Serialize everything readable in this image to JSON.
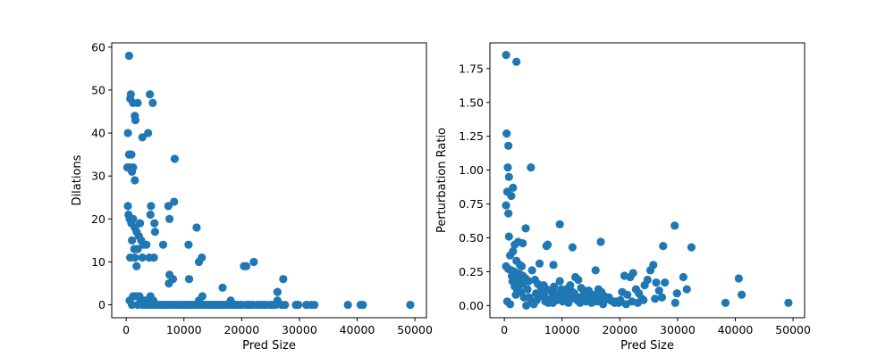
{
  "chart_data": [
    {
      "type": "scatter",
      "xlabel": "Pred Size",
      "ylabel": "Dilations",
      "xlim": [
        -2500,
        52000
      ],
      "ylim": [
        -3,
        61
      ],
      "xticks": [
        0,
        10000,
        20000,
        30000,
        40000,
        50000
      ],
      "xtick_labels": [
        "0",
        "10000",
        "20000",
        "30000",
        "40000",
        "50000"
      ],
      "yticks": [
        0,
        10,
        20,
        30,
        40,
        50,
        60
      ],
      "ytick_labels": [
        "0",
        "10",
        "20",
        "30",
        "40",
        "50",
        "60"
      ],
      "grid": false,
      "marker_color": "#1f77b4",
      "points": [
        [
          500,
          58
        ],
        [
          800,
          49
        ],
        [
          700,
          48
        ],
        [
          1200,
          47
        ],
        [
          2000,
          47
        ],
        [
          1500,
          44
        ],
        [
          1600,
          43
        ],
        [
          300,
          40
        ],
        [
          3800,
          40
        ],
        [
          2800,
          39
        ],
        [
          500,
          35
        ],
        [
          900,
          35
        ],
        [
          200,
          32
        ],
        [
          600,
          32
        ],
        [
          1200,
          32
        ],
        [
          1000,
          31
        ],
        [
          1500,
          29
        ],
        [
          4100,
          49
        ],
        [
          4600,
          47
        ],
        [
          8400,
          34
        ],
        [
          300,
          23
        ],
        [
          400,
          21
        ],
        [
          600,
          20
        ],
        [
          900,
          19
        ],
        [
          1200,
          20
        ],
        [
          1500,
          18
        ],
        [
          1800,
          17
        ],
        [
          2200,
          16
        ],
        [
          2600,
          15
        ],
        [
          3000,
          14
        ],
        [
          3500,
          14
        ],
        [
          1400,
          13
        ],
        [
          2000,
          13
        ],
        [
          2400,
          19
        ],
        [
          1000,
          15
        ],
        [
          700,
          11
        ],
        [
          1500,
          11
        ],
        [
          2800,
          11
        ],
        [
          1800,
          9
        ],
        [
          4200,
          21
        ],
        [
          4300,
          23
        ],
        [
          4900,
          19
        ],
        [
          5000,
          17
        ],
        [
          4000,
          11
        ],
        [
          4800,
          11
        ],
        [
          6400,
          14
        ],
        [
          7300,
          23
        ],
        [
          8300,
          24
        ],
        [
          7500,
          20
        ],
        [
          7500,
          7
        ],
        [
          8100,
          6
        ],
        [
          7400,
          5
        ],
        [
          10800,
          14
        ],
        [
          10900,
          6
        ],
        [
          12200,
          18
        ],
        [
          12600,
          10
        ],
        [
          13100,
          11
        ],
        [
          16700,
          4
        ],
        [
          20400,
          9
        ],
        [
          20800,
          9
        ],
        [
          22100,
          10
        ],
        [
          26200,
          3
        ],
        [
          27200,
          6
        ],
        [
          600,
          1
        ],
        [
          1000,
          0
        ],
        [
          1400,
          2
        ],
        [
          2000,
          0
        ],
        [
          2600,
          1
        ],
        [
          3000,
          0
        ],
        [
          3500,
          0
        ],
        [
          4200,
          2
        ],
        [
          5000,
          0
        ],
        [
          5600,
          0
        ],
        [
          6200,
          0
        ],
        [
          6800,
          0
        ],
        [
          7500,
          0
        ],
        [
          8200,
          0
        ],
        [
          9000,
          0
        ],
        [
          9600,
          0
        ],
        [
          10200,
          0
        ],
        [
          10800,
          0
        ],
        [
          11400,
          0
        ],
        [
          12000,
          0
        ],
        [
          12600,
          1
        ],
        [
          13200,
          2
        ],
        [
          13800,
          0
        ],
        [
          14400,
          0
        ],
        [
          15000,
          0
        ],
        [
          15600,
          0
        ],
        [
          16200,
          0
        ],
        [
          16800,
          0
        ],
        [
          17400,
          0
        ],
        [
          18100,
          1
        ],
        [
          18800,
          0
        ],
        [
          19400,
          0
        ],
        [
          20100,
          0
        ],
        [
          20800,
          0
        ],
        [
          21400,
          0
        ],
        [
          22000,
          0
        ],
        [
          22700,
          0
        ],
        [
          23400,
          0
        ],
        [
          24100,
          0
        ],
        [
          24800,
          0
        ],
        [
          25500,
          0
        ],
        [
          26200,
          1
        ],
        [
          26900,
          0
        ],
        [
          27500,
          0
        ],
        [
          29400,
          0
        ],
        [
          29800,
          0
        ],
        [
          31200,
          0
        ],
        [
          32000,
          0
        ],
        [
          32600,
          0
        ],
        [
          38400,
          0
        ],
        [
          40600,
          0
        ],
        [
          41000,
          0
        ],
        [
          49200,
          0
        ],
        [
          1200,
          2
        ],
        [
          1900,
          2
        ],
        [
          2300,
          2
        ],
        [
          2900,
          0
        ],
        [
          3300,
          1
        ],
        [
          3900,
          0
        ],
        [
          4400,
          0
        ],
        [
          4700,
          1
        ],
        [
          5300,
          0
        ],
        [
          6000,
          0
        ],
        [
          6600,
          0
        ],
        [
          7100,
          0
        ],
        [
          7900,
          0
        ],
        [
          8600,
          0
        ],
        [
          9300,
          0
        ],
        [
          9900,
          0
        ],
        [
          10500,
          0
        ],
        [
          11100,
          0
        ],
        [
          11700,
          0
        ],
        [
          12300,
          0
        ],
        [
          12900,
          0
        ],
        [
          13500,
          0
        ],
        [
          14100,
          0
        ],
        [
          14700,
          0
        ],
        [
          15300,
          0
        ],
        [
          15900,
          0
        ],
        [
          16500,
          0
        ],
        [
          17100,
          0
        ],
        [
          17700,
          0
        ],
        [
          18400,
          0
        ],
        [
          19100,
          0
        ],
        [
          19700,
          0
        ],
        [
          21100,
          0
        ],
        [
          21800,
          0
        ],
        [
          23100,
          0
        ],
        [
          23800,
          0
        ],
        [
          25200,
          0
        ],
        [
          25900,
          0
        ]
      ]
    },
    {
      "type": "scatter",
      "xlabel": "Pred Size",
      "ylabel": "Perturbation Ratio",
      "xlim": [
        -2500,
        52000
      ],
      "ylim": [
        -0.09,
        1.94
      ],
      "xticks": [
        0,
        10000,
        20000,
        30000,
        40000,
        50000
      ],
      "xtick_labels": [
        "0",
        "10000",
        "20000",
        "30000",
        "40000",
        "50000"
      ],
      "yticks": [
        0,
        0.25,
        0.5,
        0.75,
        1.0,
        1.25,
        1.5,
        1.75
      ],
      "ytick_labels": [
        "0.00",
        "0.25",
        "0.50",
        "0.75",
        "1.00",
        "1.25",
        "1.50",
        "1.75"
      ],
      "grid": false,
      "marker_color": "#1f77b4",
      "points": [
        [
          300,
          1.85
        ],
        [
          2100,
          1.8
        ],
        [
          400,
          1.27
        ],
        [
          700,
          1.18
        ],
        [
          600,
          1.02
        ],
        [
          4600,
          1.02
        ],
        [
          800,
          0.95
        ],
        [
          1500,
          0.87
        ],
        [
          500,
          0.84
        ],
        [
          1200,
          0.81
        ],
        [
          300,
          0.74
        ],
        [
          700,
          0.68
        ],
        [
          3700,
          0.57
        ],
        [
          9600,
          0.6
        ],
        [
          29500,
          0.59
        ],
        [
          800,
          0.51
        ],
        [
          1800,
          0.45
        ],
        [
          2400,
          0.47
        ],
        [
          3200,
          0.46
        ],
        [
          7300,
          0.44
        ],
        [
          7500,
          0.45
        ],
        [
          11800,
          0.43
        ],
        [
          16700,
          0.47
        ],
        [
          27500,
          0.44
        ],
        [
          32400,
          0.43
        ],
        [
          1000,
          0.37
        ],
        [
          1500,
          0.4
        ],
        [
          2100,
          0.33
        ],
        [
          2700,
          0.3
        ],
        [
          3000,
          0.29
        ],
        [
          6100,
          0.31
        ],
        [
          8500,
          0.3
        ],
        [
          300,
          0.29
        ],
        [
          700,
          0.27
        ],
        [
          1200,
          0.26
        ],
        [
          1700,
          0.25
        ],
        [
          2200,
          0.24
        ],
        [
          2700,
          0.23
        ],
        [
          3200,
          0.22
        ],
        [
          3700,
          0.2
        ],
        [
          4200,
          0.18
        ],
        [
          4800,
          0.26
        ],
        [
          5300,
          0.19
        ],
        [
          5800,
          0.16
        ],
        [
          6300,
          0.14
        ],
        [
          6800,
          0.15
        ],
        [
          7300,
          0.12
        ],
        [
          7800,
          0.11
        ],
        [
          8300,
          0.1
        ],
        [
          8800,
          0.09
        ],
        [
          9300,
          0.08
        ],
        [
          9800,
          0.07
        ],
        [
          10300,
          0.06
        ],
        [
          10800,
          0.12
        ],
        [
          11300,
          0.14
        ],
        [
          11800,
          0.1
        ],
        [
          12300,
          0.21
        ],
        [
          12800,
          0.19
        ],
        [
          13300,
          0.13
        ],
        [
          13800,
          0.11
        ],
        [
          14300,
          0.08
        ],
        [
          14800,
          0.06
        ],
        [
          15300,
          0.05
        ],
        [
          15800,
          0.26
        ],
        [
          16300,
          0.12
        ],
        [
          16800,
          0.1
        ],
        [
          17300,
          0.07
        ],
        [
          17800,
          0.05
        ],
        [
          18300,
          0.04
        ],
        [
          18800,
          0.03
        ],
        [
          19300,
          0.03
        ],
        [
          19800,
          0.02
        ],
        [
          20400,
          0.1
        ],
        [
          20800,
          0.22
        ],
        [
          21300,
          0.08
        ],
        [
          21800,
          0.21
        ],
        [
          22300,
          0.24
        ],
        [
          22800,
          0.12
        ],
        [
          23300,
          0.09
        ],
        [
          23800,
          0.05
        ],
        [
          24300,
          0.15
        ],
        [
          24800,
          0.19
        ],
        [
          25300,
          0.26
        ],
        [
          25800,
          0.3
        ],
        [
          26300,
          0.17
        ],
        [
          26800,
          0.11
        ],
        [
          27300,
          0.06
        ],
        [
          27800,
          0.17
        ],
        [
          29600,
          0.02
        ],
        [
          29900,
          0.09
        ],
        [
          31000,
          0.21
        ],
        [
          31600,
          0.12
        ],
        [
          38300,
          0.02
        ],
        [
          40600,
          0.2
        ],
        [
          41100,
          0.08
        ],
        [
          49200,
          0.02
        ],
        [
          500,
          0.03
        ],
        [
          1000,
          0.01
        ],
        [
          1400,
          0.18
        ],
        [
          1800,
          0.14
        ],
        [
          2200,
          0.12
        ],
        [
          2500,
          0.19
        ],
        [
          2900,
          0.1
        ],
        [
          3400,
          0.06
        ],
        [
          3800,
          0.0
        ],
        [
          4300,
          0.06
        ],
        [
          4600,
          0.03
        ],
        [
          5100,
          0.01
        ],
        [
          5600,
          0.04
        ],
        [
          6100,
          0.07
        ],
        [
          6600,
          0.1
        ],
        [
          7100,
          0.03
        ],
        [
          7600,
          0.02
        ],
        [
          8100,
          0.05
        ],
        [
          8600,
          0.14
        ],
        [
          9100,
          0.04
        ],
        [
          9600,
          0.18
        ],
        [
          10100,
          0.03
        ],
        [
          10600,
          0.08
        ],
        [
          11100,
          0.02
        ],
        [
          11600,
          0.05
        ],
        [
          12100,
          0.09
        ],
        [
          12600,
          0.04
        ],
        [
          13100,
          0.02
        ],
        [
          13600,
          0.07
        ],
        [
          14100,
          0.03
        ],
        [
          14600,
          0.11
        ],
        [
          15100,
          0.02
        ],
        [
          15600,
          0.08
        ],
        [
          16100,
          0.03
        ],
        [
          16600,
          0.05
        ],
        [
          17100,
          0.01
        ],
        [
          18100,
          0.06
        ],
        [
          19100,
          0.02
        ],
        [
          20100,
          0.04
        ],
        [
          21100,
          0.01
        ],
        [
          22100,
          0.03
        ],
        [
          23100,
          0.02
        ],
        [
          24100,
          0.04
        ],
        [
          26100,
          0.05
        ],
        [
          1300,
          0.22
        ],
        [
          2000,
          0.08
        ],
        [
          3100,
          0.16
        ],
        [
          4000,
          0.12
        ],
        [
          5500,
          0.09
        ],
        [
          7000,
          0.06
        ],
        [
          8400,
          0.02
        ],
        [
          9900,
          0.12
        ],
        [
          11400,
          0.15
        ],
        [
          12900,
          0.06
        ],
        [
          14400,
          0.04
        ]
      ]
    }
  ]
}
